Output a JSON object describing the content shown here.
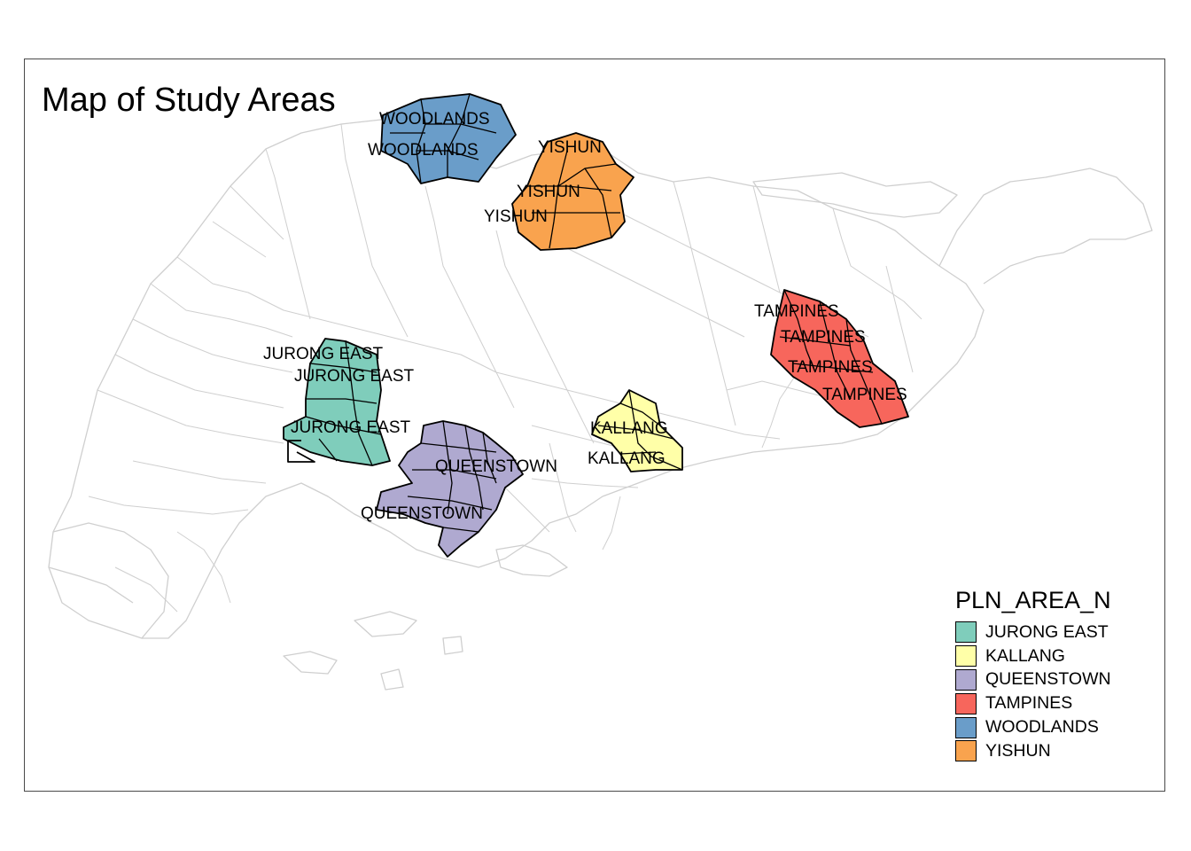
{
  "title": "Map of Study Areas",
  "legend": {
    "title": "PLN_AREA_N",
    "items": [
      {
        "label": "JURONG EAST",
        "color": "#7fcdbb"
      },
      {
        "label": "KALLANG",
        "color": "#ffffa8"
      },
      {
        "label": "QUEENSTOWN",
        "color": "#afa9d0"
      },
      {
        "label": "TAMPINES",
        "color": "#f7665c"
      },
      {
        "label": "WOODLANDS",
        "color": "#6a9dc9"
      },
      {
        "label": "YISHUN",
        "color": "#f9a34e"
      }
    ]
  },
  "map_labels": [
    "WOODLANDS",
    "WOODLANDS",
    "YISHUN",
    "YISHUN",
    "YISHUN",
    "TAMPINES",
    "TAMPINES",
    "TAMPINES",
    "TAMPINES",
    "JURONG EAST",
    "JURONG EAST",
    "JURONG EAST",
    "KALLANG",
    "KALLANG",
    "QUEENSTOWN",
    "QUEENSTOWN"
  ],
  "colors": {
    "base_boundary": "#cfcfcf",
    "highlight_outline": "#000000",
    "frame": "#4a4a4a"
  }
}
